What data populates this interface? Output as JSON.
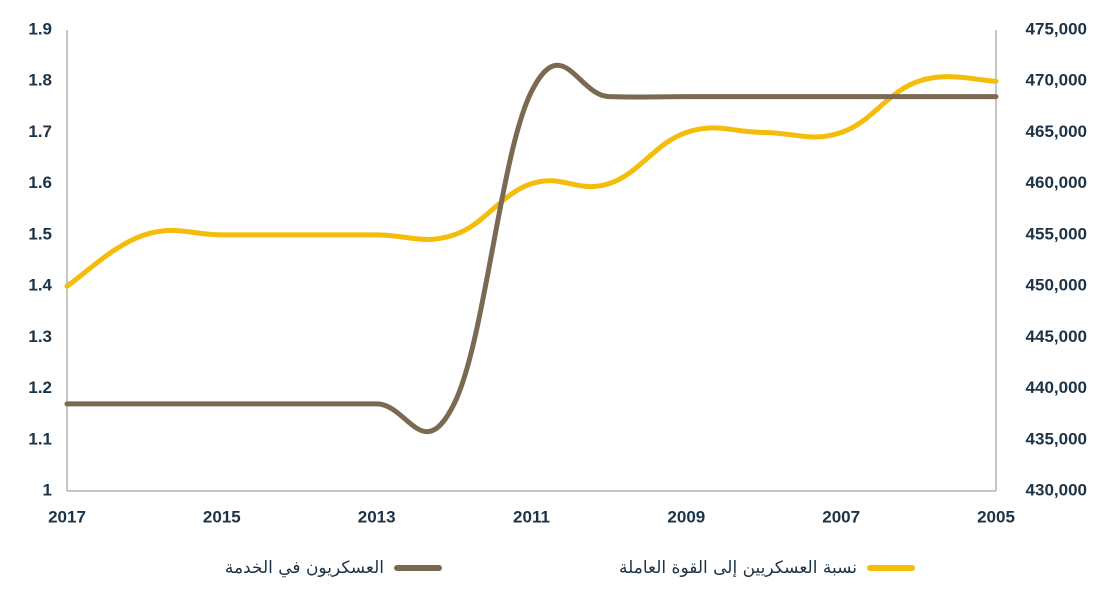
{
  "chart_data": {
    "type": "line",
    "categories": [
      "2017",
      "2016",
      "2015",
      "2014",
      "2013",
      "2012",
      "2011",
      "2010",
      "2009",
      "2008",
      "2007",
      "2006",
      "2005"
    ],
    "x_tick_labels": [
      "2017",
      "2015",
      "2013",
      "2011",
      "2009",
      "2007",
      "2005"
    ],
    "left_axis": {
      "ylim": [
        1,
        1.9
      ],
      "ticks": [
        "1",
        "1.1",
        "1.2",
        "1.3",
        "1.4",
        "1.5",
        "1.6",
        "1.7",
        "1.8",
        "1.9"
      ]
    },
    "right_axis": {
      "ylim": [
        430000,
        475000
      ],
      "ticks": [
        "430,000",
        "435,000",
        "440,000",
        "445,000",
        "450,000",
        "455,000",
        "460,000",
        "465,000",
        "470,000",
        "475,000"
      ]
    },
    "series": [
      {
        "name": "العسكريون في الخدمة",
        "axis": "left",
        "color": "#7a6a52",
        "values": [
          1.17,
          1.17,
          1.17,
          1.17,
          1.17,
          1.17,
          1.78,
          1.77,
          1.77,
          1.77,
          1.77,
          1.77,
          1.77
        ]
      },
      {
        "name": "نسبة العسكريين إلى القوة العاملة",
        "axis": "right",
        "color": "#f5bc0a",
        "values": [
          450000,
          455000,
          455000,
          455000,
          455000,
          455000,
          460000,
          460000,
          465000,
          465000,
          465000,
          470000,
          470000
        ]
      }
    ],
    "grid": false,
    "legend_position": "bottom"
  },
  "legend": {
    "items": [
      {
        "label": "العسكريون في الخدمة",
        "color": "#7a6a52"
      },
      {
        "label": "نسبة العسكريين إلى القوة العاملة",
        "color": "#f5bc0a"
      }
    ]
  }
}
